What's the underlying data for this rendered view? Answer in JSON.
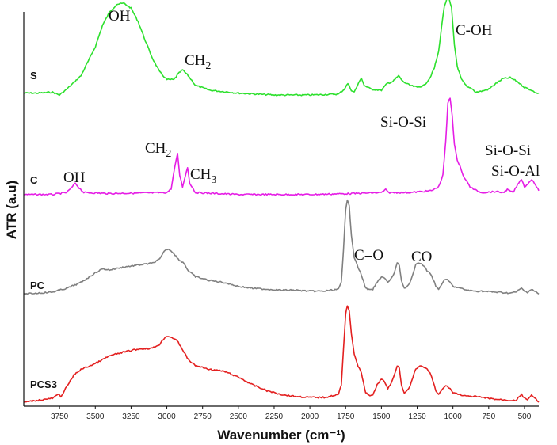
{
  "chart_data": {
    "type": "line",
    "title": "",
    "xlabel": "Wavenumber (cm⁻¹)",
    "ylabel": "ATR  (a.u)",
    "xlim": [
      4000,
      400
    ],
    "x_reversed": true,
    "x_ticks": [
      3750,
      3500,
      3250,
      3000,
      2750,
      2500,
      2250,
      2000,
      1750,
      1500,
      1250,
      1000,
      750,
      500
    ],
    "ylim": [
      0,
      4.2
    ],
    "grid": false,
    "series": [
      {
        "name": "S",
        "color": "#2ee02e",
        "baseline": 3.18,
        "points": [
          [
            4000,
            0.02
          ],
          [
            3900,
            0.02
          ],
          [
            3800,
            0.03
          ],
          [
            3750,
            0.0
          ],
          [
            3700,
            0.06
          ],
          [
            3600,
            0.2
          ],
          [
            3500,
            0.5
          ],
          [
            3450,
            0.72
          ],
          [
            3400,
            0.86
          ],
          [
            3350,
            0.94
          ],
          [
            3300,
            0.95
          ],
          [
            3250,
            0.9
          ],
          [
            3200,
            0.76
          ],
          [
            3150,
            0.56
          ],
          [
            3100,
            0.38
          ],
          [
            3050,
            0.24
          ],
          [
            3000,
            0.16
          ],
          [
            2950,
            0.16
          ],
          [
            2920,
            0.22
          ],
          [
            2890,
            0.26
          ],
          [
            2850,
            0.2
          ],
          [
            2800,
            0.1
          ],
          [
            2700,
            0.05
          ],
          [
            2500,
            0.02
          ],
          [
            2250,
            0.0
          ],
          [
            2000,
            0.0
          ],
          [
            1800,
            0.01
          ],
          [
            1760,
            0.06
          ],
          [
            1735,
            0.12
          ],
          [
            1710,
            0.05
          ],
          [
            1690,
            0.03
          ],
          [
            1660,
            0.12
          ],
          [
            1640,
            0.18
          ],
          [
            1620,
            0.1
          ],
          [
            1570,
            0.06
          ],
          [
            1500,
            0.05
          ],
          [
            1460,
            0.12
          ],
          [
            1420,
            0.14
          ],
          [
            1380,
            0.2
          ],
          [
            1350,
            0.14
          ],
          [
            1300,
            0.1
          ],
          [
            1250,
            0.08
          ],
          [
            1200,
            0.1
          ],
          [
            1160,
            0.18
          ],
          [
            1130,
            0.28
          ],
          [
            1100,
            0.45
          ],
          [
            1080,
            0.7
          ],
          [
            1060,
            0.92
          ],
          [
            1040,
            1.0
          ],
          [
            1025,
            0.98
          ],
          [
            1010,
            0.9
          ],
          [
            990,
            0.52
          ],
          [
            970,
            0.3
          ],
          [
            940,
            0.16
          ],
          [
            900,
            0.08
          ],
          [
            870,
            0.07
          ],
          [
            840,
            0.03
          ],
          [
            800,
            0.04
          ],
          [
            750,
            0.06
          ],
          [
            700,
            0.12
          ],
          [
            650,
            0.17
          ],
          [
            600,
            0.18
          ],
          [
            550,
            0.14
          ],
          [
            500,
            0.08
          ],
          [
            450,
            0.05
          ],
          [
            420,
            0.02
          ],
          [
            400,
            0.02
          ]
        ]
      },
      {
        "name": "C",
        "color": "#e51ee5",
        "baseline": 2.15,
        "points": [
          [
            4000,
            0.0
          ],
          [
            3800,
            0.0
          ],
          [
            3700,
            0.02
          ],
          [
            3660,
            0.08
          ],
          [
            3640,
            0.12
          ],
          [
            3620,
            0.08
          ],
          [
            3580,
            0.02
          ],
          [
            3400,
            0.01
          ],
          [
            3000,
            0.02
          ],
          [
            2970,
            0.06
          ],
          [
            2945,
            0.28
          ],
          [
            2925,
            0.42
          ],
          [
            2910,
            0.2
          ],
          [
            2890,
            0.08
          ],
          [
            2870,
            0.2
          ],
          [
            2855,
            0.28
          ],
          [
            2840,
            0.12
          ],
          [
            2800,
            0.02
          ],
          [
            2500,
            0.0
          ],
          [
            2000,
            0.0
          ],
          [
            1700,
            0.01
          ],
          [
            1500,
            0.02
          ],
          [
            1470,
            0.05
          ],
          [
            1450,
            0.02
          ],
          [
            1300,
            0.02
          ],
          [
            1150,
            0.04
          ],
          [
            1100,
            0.08
          ],
          [
            1070,
            0.2
          ],
          [
            1050,
            0.55
          ],
          [
            1035,
            0.95
          ],
          [
            1020,
            1.0
          ],
          [
            1005,
            0.82
          ],
          [
            990,
            0.52
          ],
          [
            970,
            0.35
          ],
          [
            950,
            0.3
          ],
          [
            930,
            0.2
          ],
          [
            910,
            0.15
          ],
          [
            880,
            0.08
          ],
          [
            850,
            0.05
          ],
          [
            800,
            0.02
          ],
          [
            700,
            0.03
          ],
          [
            650,
            0.02
          ],
          [
            620,
            0.05
          ],
          [
            580,
            0.02
          ],
          [
            540,
            0.12
          ],
          [
            520,
            0.16
          ],
          [
            500,
            0.08
          ],
          [
            470,
            0.12
          ],
          [
            450,
            0.16
          ],
          [
            430,
            0.12
          ],
          [
            400,
            0.04
          ]
        ]
      },
      {
        "name": "PC",
        "color": "#808080",
        "baseline": 1.12,
        "points": [
          [
            4000,
            0.0
          ],
          [
            3900,
            0.01
          ],
          [
            3800,
            0.02
          ],
          [
            3750,
            0.04
          ],
          [
            3700,
            0.06
          ],
          [
            3600,
            0.12
          ],
          [
            3500,
            0.22
          ],
          [
            3450,
            0.26
          ],
          [
            3400,
            0.25
          ],
          [
            3300,
            0.28
          ],
          [
            3200,
            0.3
          ],
          [
            3100,
            0.32
          ],
          [
            3050,
            0.36
          ],
          [
            3010,
            0.46
          ],
          [
            2980,
            0.46
          ],
          [
            2950,
            0.42
          ],
          [
            2920,
            0.36
          ],
          [
            2880,
            0.32
          ],
          [
            2850,
            0.24
          ],
          [
            2800,
            0.18
          ],
          [
            2700,
            0.14
          ],
          [
            2600,
            0.12
          ],
          [
            2500,
            0.08
          ],
          [
            2400,
            0.06
          ],
          [
            2300,
            0.05
          ],
          [
            2200,
            0.04
          ],
          [
            2100,
            0.04
          ],
          [
            2000,
            0.03
          ],
          [
            1900,
            0.03
          ],
          [
            1800,
            0.05
          ],
          [
            1780,
            0.12
          ],
          [
            1765,
            0.45
          ],
          [
            1750,
            0.88
          ],
          [
            1738,
            0.98
          ],
          [
            1725,
            0.92
          ],
          [
            1710,
            0.6
          ],
          [
            1690,
            0.38
          ],
          [
            1670,
            0.3
          ],
          [
            1640,
            0.2
          ],
          [
            1610,
            0.06
          ],
          [
            1580,
            0.04
          ],
          [
            1560,
            0.05
          ],
          [
            1530,
            0.12
          ],
          [
            1500,
            0.18
          ],
          [
            1480,
            0.17
          ],
          [
            1455,
            0.12
          ],
          [
            1430,
            0.16
          ],
          [
            1410,
            0.22
          ],
          [
            1390,
            0.32
          ],
          [
            1375,
            0.3
          ],
          [
            1360,
            0.14
          ],
          [
            1340,
            0.06
          ],
          [
            1320,
            0.08
          ],
          [
            1300,
            0.12
          ],
          [
            1280,
            0.2
          ],
          [
            1260,
            0.3
          ],
          [
            1240,
            0.32
          ],
          [
            1220,
            0.32
          ],
          [
            1200,
            0.28
          ],
          [
            1180,
            0.24
          ],
          [
            1160,
            0.22
          ],
          [
            1140,
            0.16
          ],
          [
            1120,
            0.08
          ],
          [
            1100,
            0.05
          ],
          [
            1080,
            0.1
          ],
          [
            1060,
            0.14
          ],
          [
            1040,
            0.15
          ],
          [
            1020,
            0.12
          ],
          [
            1000,
            0.08
          ],
          [
            950,
            0.06
          ],
          [
            900,
            0.04
          ],
          [
            850,
            0.03
          ],
          [
            800,
            0.03
          ],
          [
            700,
            0.02
          ],
          [
            600,
            0.01
          ],
          [
            560,
            0.02
          ],
          [
            520,
            0.06
          ],
          [
            500,
            0.03
          ],
          [
            480,
            0.02
          ],
          [
            450,
            0.05
          ],
          [
            420,
            0.02
          ],
          [
            400,
            0.0
          ]
        ]
      },
      {
        "name": "PCS3",
        "color": "#e32020",
        "baseline": 0.0,
        "points": [
          [
            4000,
            0.0
          ],
          [
            3900,
            0.02
          ],
          [
            3800,
            0.04
          ],
          [
            3760,
            0.08
          ],
          [
            3740,
            0.06
          ],
          [
            3700,
            0.16
          ],
          [
            3650,
            0.28
          ],
          [
            3600,
            0.34
          ],
          [
            3500,
            0.4
          ],
          [
            3400,
            0.48
          ],
          [
            3300,
            0.52
          ],
          [
            3200,
            0.55
          ],
          [
            3100,
            0.56
          ],
          [
            3050,
            0.6
          ],
          [
            3010,
            0.68
          ],
          [
            2980,
            0.68
          ],
          [
            2950,
            0.66
          ],
          [
            2920,
            0.62
          ],
          [
            2880,
            0.52
          ],
          [
            2850,
            0.44
          ],
          [
            2800,
            0.38
          ],
          [
            2700,
            0.34
          ],
          [
            2600,
            0.32
          ],
          [
            2500,
            0.26
          ],
          [
            2400,
            0.18
          ],
          [
            2300,
            0.12
          ],
          [
            2200,
            0.08
          ],
          [
            2100,
            0.06
          ],
          [
            2000,
            0.05
          ],
          [
            1900,
            0.05
          ],
          [
            1800,
            0.08
          ],
          [
            1780,
            0.18
          ],
          [
            1765,
            0.55
          ],
          [
            1750,
            0.92
          ],
          [
            1738,
            1.0
          ],
          [
            1725,
            0.95
          ],
          [
            1710,
            0.7
          ],
          [
            1690,
            0.5
          ],
          [
            1670,
            0.4
          ],
          [
            1640,
            0.3
          ],
          [
            1610,
            0.1
          ],
          [
            1580,
            0.06
          ],
          [
            1560,
            0.08
          ],
          [
            1530,
            0.18
          ],
          [
            1500,
            0.24
          ],
          [
            1480,
            0.22
          ],
          [
            1455,
            0.14
          ],
          [
            1430,
            0.2
          ],
          [
            1410,
            0.28
          ],
          [
            1390,
            0.38
          ],
          [
            1375,
            0.36
          ],
          [
            1360,
            0.18
          ],
          [
            1340,
            0.1
          ],
          [
            1320,
            0.12
          ],
          [
            1300,
            0.16
          ],
          [
            1280,
            0.26
          ],
          [
            1260,
            0.34
          ],
          [
            1240,
            0.36
          ],
          [
            1220,
            0.38
          ],
          [
            1200,
            0.36
          ],
          [
            1180,
            0.34
          ],
          [
            1160,
            0.3
          ],
          [
            1140,
            0.22
          ],
          [
            1120,
            0.12
          ],
          [
            1100,
            0.08
          ],
          [
            1080,
            0.12
          ],
          [
            1060,
            0.16
          ],
          [
            1040,
            0.17
          ],
          [
            1020,
            0.14
          ],
          [
            1000,
            0.1
          ],
          [
            950,
            0.08
          ],
          [
            900,
            0.06
          ],
          [
            850,
            0.06
          ],
          [
            800,
            0.05
          ],
          [
            700,
            0.03
          ],
          [
            600,
            0.02
          ],
          [
            560,
            0.02
          ],
          [
            520,
            0.08
          ],
          [
            500,
            0.04
          ],
          [
            480,
            0.03
          ],
          [
            450,
            0.07
          ],
          [
            420,
            0.03
          ],
          [
            400,
            0.0
          ]
        ]
      }
    ],
    "annotations": [
      {
        "series": "S",
        "text": "OH",
        "sub": ""
      },
      {
        "series": "S",
        "text": "CH",
        "sub": "2"
      },
      {
        "series": "S",
        "text": "C-OH",
        "sub": ""
      },
      {
        "series": "C",
        "text": "OH",
        "sub": ""
      },
      {
        "series": "C",
        "text": "CH",
        "sub": "2"
      },
      {
        "series": "C",
        "text": "CH",
        "sub": "3"
      },
      {
        "series": "C",
        "text": "Si-O-Si",
        "sub": ""
      },
      {
        "series": "C",
        "text": "Si-O-Si",
        "sub": ""
      },
      {
        "series": "C",
        "text": "Si-O-Al",
        "sub": ""
      },
      {
        "series": "PC",
        "text": "C=O",
        "sub": ""
      },
      {
        "series": "PC",
        "text": "CO",
        "sub": ""
      }
    ]
  }
}
